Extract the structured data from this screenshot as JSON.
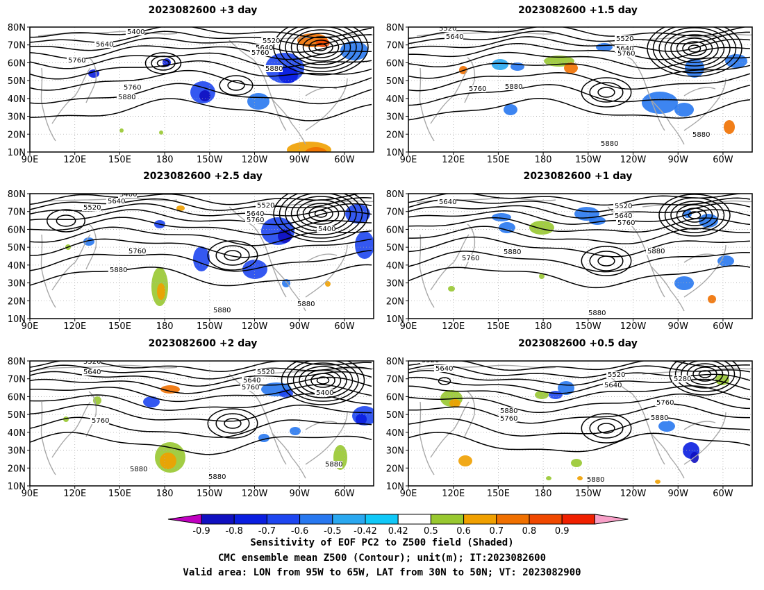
{
  "panels": [
    {
      "title": "2023082600  +3 day",
      "contour_labels": [
        "5400",
        "5640",
        "5520",
        "5640",
        "5760",
        "5760",
        "5760",
        "5880",
        "5880"
      ]
    },
    {
      "title": "2023082600  +1.5 day",
      "contour_labels": [
        "5520",
        "5640",
        "5520",
        "5640",
        "5760",
        "5760",
        "5880",
        "5880",
        "5880"
      ]
    },
    {
      "title": "2023082600  +2.5 day",
      "contour_labels": [
        "5400",
        "5520",
        "5640",
        "5520",
        "5640",
        "5760",
        "5400",
        "5760",
        "5880",
        "5880",
        "5880"
      ]
    },
    {
      "title": "2023082600  +1 day",
      "contour_labels": [
        "5640",
        "5520",
        "5640",
        "5760",
        "5760",
        "5880",
        "5880",
        "5880"
      ]
    },
    {
      "title": "2023082600  +2 day",
      "contour_labels": [
        "5520",
        "5640",
        "5520",
        "5640",
        "5760",
        "5400",
        "5760",
        "5880",
        "5880",
        "5880"
      ]
    },
    {
      "title": "2023082600  +0.5 day",
      "contour_labels": [
        "5520",
        "5640",
        "5520",
        "5640",
        "5280",
        "5760",
        "5880",
        "5760",
        "5880",
        "5880"
      ]
    }
  ],
  "axes": {
    "lat_labels": [
      "10N",
      "20N",
      "30N",
      "40N",
      "50N",
      "60N",
      "70N",
      "80N"
    ],
    "lon_labels": [
      "90E",
      "120E",
      "150E",
      "180",
      "150W",
      "120W",
      "90W",
      "60W"
    ]
  },
  "colorbar": {
    "tick_labels": [
      "-0.9",
      "-0.8",
      "-0.7",
      "-0.6",
      "-0.5",
      "-0.42",
      "0.42",
      "0.5",
      "0.6",
      "0.7",
      "0.8",
      "0.9"
    ],
    "colors": [
      "#c000c0",
      "#1010c0",
      "#0a1ee0",
      "#1e46f0",
      "#2878f0",
      "#2aa8f0",
      "#10c8f8",
      "#ffffff",
      "#98c830",
      "#f0a000",
      "#f07000",
      "#f04800",
      "#f02000",
      "#f8a0c8"
    ]
  },
  "caption": {
    "line1": "Sensitivity of EOF PC2 to Z500 field (Shaded)",
    "line2": "CMC ensemble mean Z500 (Contour); unit(m); IT:2023082600",
    "line3": "Valid area: LON from 95W to 65W, LAT from 30N to 50N; VT: 2023082900"
  }
}
